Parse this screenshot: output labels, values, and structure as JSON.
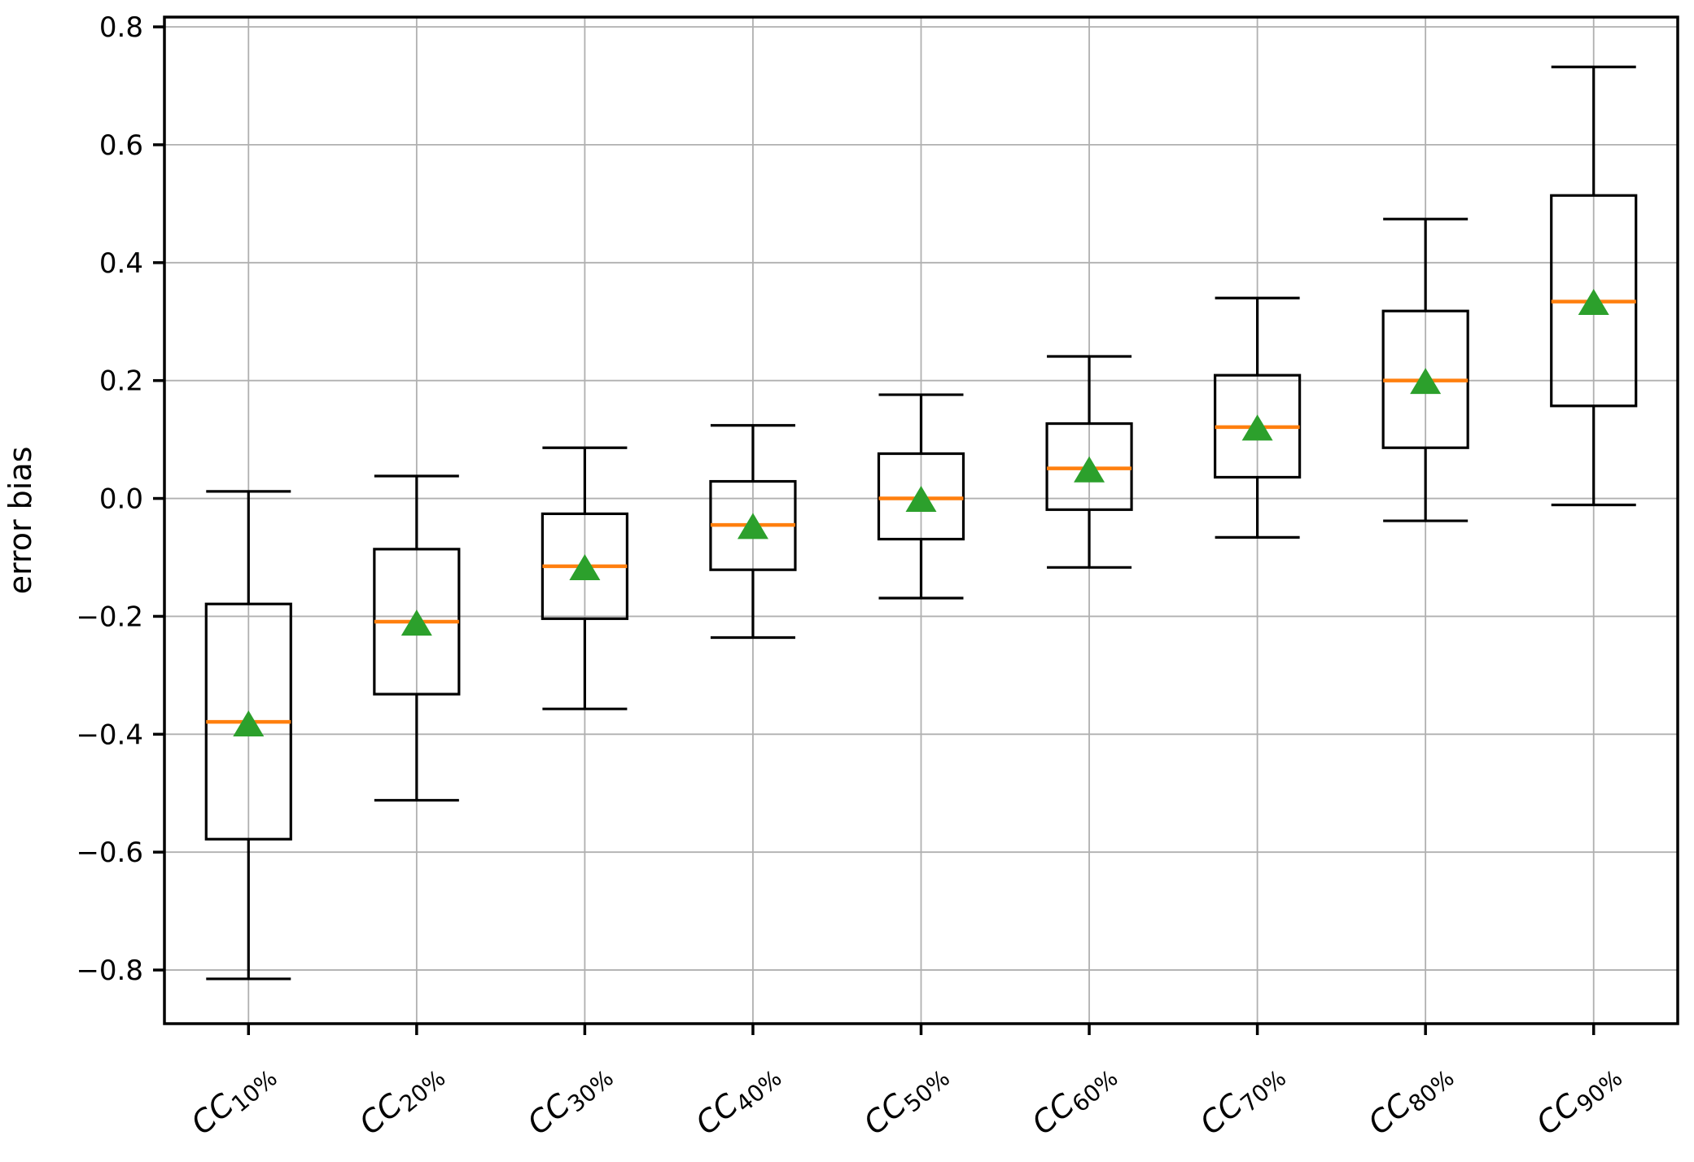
{
  "figure": {
    "background": "#ffffff",
    "ylabel": "error bias",
    "colors": {
      "box_line": "#000000",
      "median": "#ff7f0e",
      "mean_marker": "#2ca02c",
      "grid": "#b0b0b0",
      "spine": "#000000",
      "tick_label": "#000000"
    }
  },
  "chart_data": {
    "type": "boxplot",
    "title": "",
    "xlabel": "",
    "ylabel": "error bias",
    "grid": true,
    "legend": "none",
    "ylim": [
      -0.891,
      0.8166
    ],
    "ytick_values": [
      0.8,
      0.6,
      0.4,
      0.2,
      0.0,
      -0.2,
      -0.4,
      -0.6,
      -0.8
    ],
    "ytick_labels": [
      "0.8",
      "0.6",
      "0.4",
      "0.2",
      "0.0",
      "−0.2",
      "−0.4",
      "−0.6",
      "−0.8"
    ],
    "categories": [
      "CC10%",
      "CC20%",
      "CC30%",
      "CC40%",
      "CC50%",
      "CC60%",
      "CC70%",
      "CC80%",
      "CC90%"
    ],
    "category_prefix": "CC",
    "category_subscripts": [
      "10%",
      "20%",
      "30%",
      "40%",
      "50%",
      "60%",
      "70%",
      "80%",
      "90%"
    ],
    "mean_marker_shape": "triangle-up",
    "boxes": [
      {
        "label": "CC10%",
        "whislo": -0.815,
        "q1": -0.578,
        "median": -0.379,
        "mean": -0.383,
        "q3": -0.179,
        "whishi": 0.012
      },
      {
        "label": "CC20%",
        "whislo": -0.512,
        "q1": -0.332,
        "median": -0.209,
        "mean": -0.212,
        "q3": -0.086,
        "whishi": 0.038
      },
      {
        "label": "CC30%",
        "whislo": -0.357,
        "q1": -0.204,
        "median": -0.115,
        "mean": -0.118,
        "q3": -0.026,
        "whishi": 0.086
      },
      {
        "label": "CC40%",
        "whislo": -0.236,
        "q1": -0.121,
        "median": -0.045,
        "mean": -0.048,
        "q3": 0.029,
        "whishi": 0.124
      },
      {
        "label": "CC50%",
        "whislo": -0.169,
        "q1": -0.069,
        "median": 0.0,
        "mean": -0.002,
        "q3": 0.076,
        "whishi": 0.176
      },
      {
        "label": "CC60%",
        "whislo": -0.117,
        "q1": -0.019,
        "median": 0.051,
        "mean": 0.048,
        "q3": 0.127,
        "whishi": 0.241
      },
      {
        "label": "CC70%",
        "whislo": -0.066,
        "q1": 0.036,
        "median": 0.121,
        "mean": 0.119,
        "q3": 0.209,
        "whishi": 0.34
      },
      {
        "label": "CC80%",
        "whislo": -0.038,
        "q1": 0.086,
        "median": 0.2,
        "mean": 0.198,
        "q3": 0.318,
        "whishi": 0.474
      },
      {
        "label": "CC90%",
        "whislo": -0.011,
        "q1": 0.157,
        "median": 0.334,
        "mean": 0.332,
        "q3": 0.514,
        "whishi": 0.732
      }
    ]
  }
}
